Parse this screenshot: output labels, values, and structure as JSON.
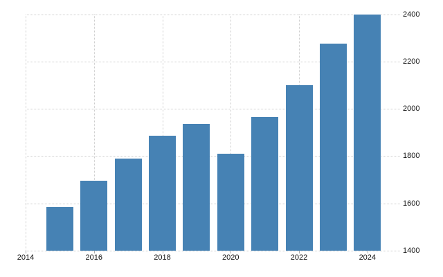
{
  "chart_data": {
    "type": "bar",
    "title": "",
    "xlabel": "",
    "ylabel": "",
    "x": [
      2015,
      2016,
      2017,
      2018,
      2019,
      2020,
      2021,
      2022,
      2023,
      2024
    ],
    "values": [
      1585,
      1695,
      1790,
      1885,
      1935,
      1810,
      1965,
      2100,
      2275,
      2398
    ],
    "x_tick_labels": [
      "2014",
      "2016",
      "2018",
      "2020",
      "2022",
      "2024"
    ],
    "x_tick_years": [
      2014,
      2016,
      2018,
      2020,
      2022,
      2024
    ],
    "y_tick_labels": [
      "1400",
      "1600",
      "1800",
      "2000",
      "2200",
      "2400"
    ],
    "y_ticks": [
      1400,
      1600,
      1800,
      2000,
      2200,
      2400
    ],
    "ylim": [
      1400,
      2400
    ],
    "xlim": [
      2014,
      2024.51
    ],
    "bar_color": "#4682b4",
    "grid_color": "#cccccc",
    "text_color": "#111111",
    "grid_style": "dotted",
    "legend": "none",
    "y_axis_side": "right"
  }
}
